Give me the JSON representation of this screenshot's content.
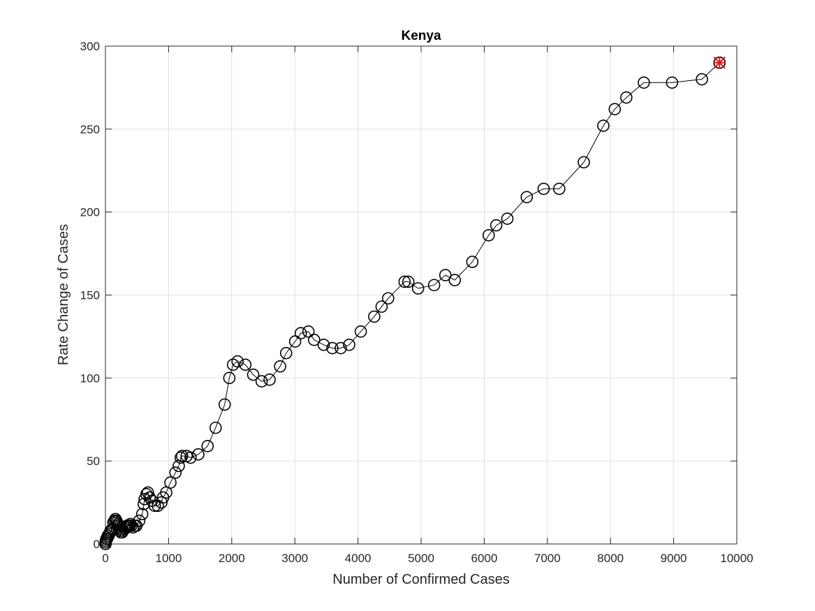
{
  "chart_data": {
    "type": "scatter",
    "title": "Kenya",
    "xlabel": "Number of Confirmed Cases",
    "ylabel": "Rate Change of Cases",
    "xlim": [
      0,
      10000
    ],
    "ylim": [
      0,
      300
    ],
    "xticks": [
      0,
      1000,
      2000,
      3000,
      4000,
      5000,
      6000,
      7000,
      8000,
      9000,
      10000
    ],
    "yticks": [
      0,
      50,
      100,
      150,
      200,
      250,
      300
    ],
    "xtick_labels": [
      "0",
      "1000",
      "2000",
      "3000",
      "4000",
      "5000",
      "6000",
      "7000",
      "8000",
      "9000",
      "10000"
    ],
    "ytick_labels": [
      "0",
      "50",
      "100",
      "150",
      "200",
      "250",
      "300"
    ],
    "grid": true,
    "line_color": "#000000",
    "highlight_color": "#e8141a",
    "series": [
      {
        "marker": "circle",
        "connected": true,
        "x": [
          1,
          3,
          7,
          15,
          25,
          31,
          38,
          50,
          59,
          72,
          81,
          110,
          126,
          142,
          158,
          172,
          184,
          197,
          208,
          216,
          225,
          234,
          246,
          262,
          281,
          303,
          320,
          336,
          343,
          355,
          374,
          384,
          396,
          411,
          435,
          465,
          490,
          535,
          582,
          607,
          621,
          649,
          672,
          700,
          737,
          781,
          830,
          887,
          912,
          963,
          1029,
          1109,
          1161,
          1192,
          1214,
          1286,
          1348,
          1471,
          1618,
          1745,
          1888,
          1962,
          2021,
          2093,
          2216,
          2340,
          2474,
          2600,
          2767,
          2862,
          3005,
          3094,
          3215,
          3305,
          3457,
          3594,
          3727,
          3860,
          4044,
          4257,
          4374,
          4478,
          4738,
          4797,
          4952,
          5206,
          5384,
          5533,
          5811,
          6070,
          6190,
          6366,
          6673,
          6941,
          7188,
          7577,
          7886,
          8067,
          8250,
          8528,
          8975,
          9448,
          9726
        ],
        "y": [
          0,
          1,
          2,
          3,
          3,
          4,
          5,
          5,
          6,
          7,
          8,
          9,
          13,
          14,
          15,
          14,
          13,
          12,
          11,
          10,
          9,
          8,
          7,
          7,
          8,
          9,
          10,
          10,
          11,
          11,
          11,
          11,
          12,
          11,
          10,
          11,
          11,
          14,
          18,
          24,
          27,
          30,
          31,
          28,
          26,
          23,
          23,
          25,
          28,
          31,
          37,
          43,
          47,
          52,
          53,
          53,
          52,
          54,
          59,
          70,
          84,
          100,
          108,
          110,
          108,
          102,
          98,
          99,
          107,
          115,
          122,
          127,
          128,
          123,
          120,
          118,
          118,
          120,
          128,
          137,
          143,
          148,
          158,
          158,
          154,
          156,
          162,
          159,
          170,
          186,
          192,
          196,
          209,
          214,
          214,
          230,
          252,
          262,
          269,
          278,
          278,
          280,
          290
        ]
      }
    ],
    "highlight_point": {
      "x": 9726,
      "y": 290,
      "marker": "x-and-asterisk"
    }
  }
}
